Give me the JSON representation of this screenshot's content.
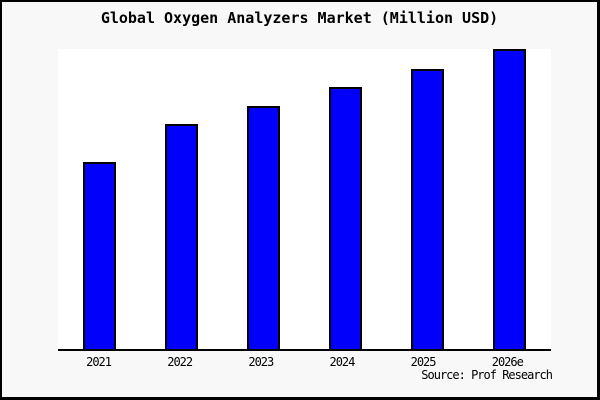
{
  "page": {
    "background_color": "#f8f8f8",
    "plot_background_color": "#ffffff",
    "border_color": "#000000"
  },
  "chart_data": {
    "type": "bar",
    "title": "Global Oxygen Analyzers Market (Million USD)",
    "categories": [
      "2021",
      "2022",
      "2023",
      "2024",
      "2025",
      "2026e"
    ],
    "values": [
      62.5,
      75,
      81,
      87.5,
      93.5,
      100
    ],
    "value_note": "no y-axis or data labels shown; values estimated as % of tallest bar (2026e = 100)",
    "xlabel": "",
    "ylabel": "",
    "ylim": [
      0,
      100
    ],
    "grid": false,
    "legend": null,
    "y_axis_visible": false,
    "x_axis_line_visible": true,
    "bar_color": "#0000fb",
    "bar_outline_color": "#000000",
    "source": "Source: Prof Research"
  }
}
